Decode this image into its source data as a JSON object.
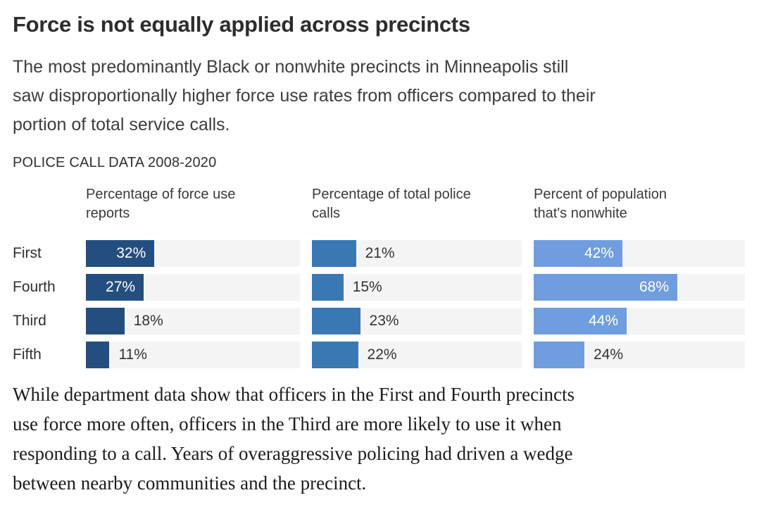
{
  "header": {
    "title": "Force is not equally applied across precincts",
    "subtitle_lines": [
      "The most predominantly Black or nonwhite precincts in Minneapolis still",
      "saw disproportionally higher force use rates from officers compared to their",
      "portion of total service calls."
    ],
    "kicker": "POLICE CALL DATA 2008-2020"
  },
  "chart": {
    "track_color": "#f4f4f4",
    "scale_max": 100,
    "row_labels": [
      "First",
      "Fourth",
      "Third",
      "Fifth"
    ],
    "columns": [
      {
        "header_lines": [
          "Percentage of force use",
          "reports"
        ],
        "color": "#234e7f",
        "values": [
          32,
          27,
          18,
          11
        ],
        "labels": [
          "32%",
          "27%",
          "18%",
          "11%"
        ],
        "label_inside": [
          true,
          true,
          false,
          false
        ]
      },
      {
        "header_lines": [
          "Percentage of total police",
          "calls"
        ],
        "color": "#3a78b3",
        "values": [
          21,
          15,
          23,
          22
        ],
        "labels": [
          "21%",
          "15%",
          "23%",
          "22%"
        ],
        "label_inside": [
          false,
          false,
          false,
          false
        ]
      },
      {
        "header_lines": [
          "Percent of population",
          "that's nonwhite"
        ],
        "color": "#6f9ddf",
        "values": [
          42,
          68,
          44,
          24
        ],
        "labels": [
          "42%",
          "68%",
          "44%",
          "24%"
        ],
        "label_inside": [
          true,
          true,
          true,
          false
        ]
      }
    ]
  },
  "footer": {
    "paragraph_lines": [
      "While department data show that officers in the First and Fourth precincts",
      "use force more often, officers in the Third are more likely to use it when",
      "responding to a call. Years of overaggressive policing had driven a wedge",
      "between nearby communities and the precinct."
    ]
  },
  "chart_data": {
    "type": "bar",
    "orientation": "horizontal",
    "title": "Force is not equally applied across precincts",
    "kicker": "POLICE CALL DATA 2008-2020",
    "categories": [
      "First",
      "Fourth",
      "Third",
      "Fifth"
    ],
    "series": [
      {
        "name": "Percentage of force use reports",
        "values": [
          32,
          27,
          18,
          11
        ],
        "color": "#234e7f"
      },
      {
        "name": "Percentage of total police calls",
        "values": [
          21,
          15,
          23,
          22
        ],
        "color": "#3a78b3"
      },
      {
        "name": "Percent of population that's nonwhite",
        "values": [
          42,
          68,
          44,
          24
        ],
        "color": "#6f9ddf"
      }
    ],
    "xlim": [
      0,
      100
    ],
    "value_format": "percent",
    "grid": false,
    "legend_position": "column-headers",
    "track_color": "#f4f4f4"
  }
}
